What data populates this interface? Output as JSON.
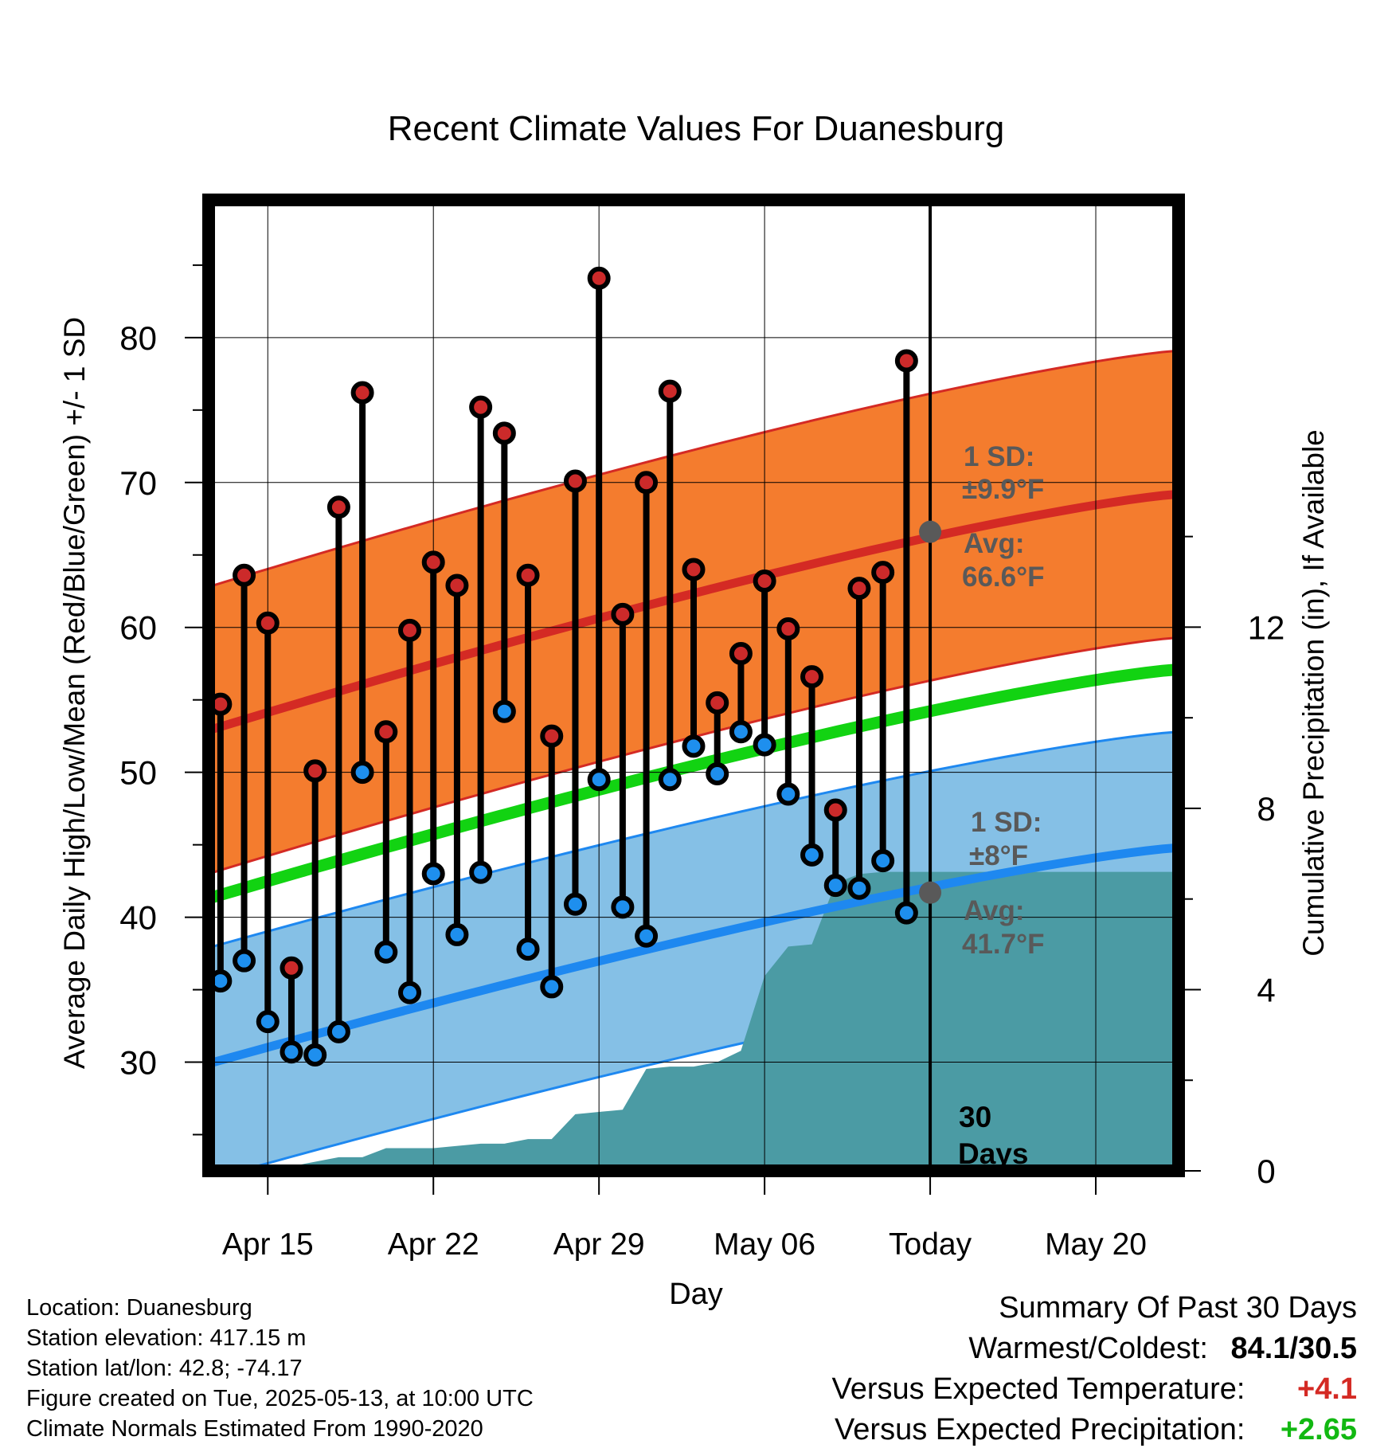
{
  "chart_data": {
    "type": "line",
    "title": "Recent Climate Values For Duanesburg",
    "xlabel": "Day",
    "ylabel": "Average Daily High/Low/Mean (Red/Blue/Green) +/- 1 SD",
    "y2label": "Cumulative Precipitation (in), If Available",
    "x_tick_labels": [
      "Apr 15",
      "Apr 22",
      "Apr 29",
      "May 06",
      "Today",
      "May 20"
    ],
    "x_range_days_from_apr15": [
      -2.5,
      38.5
    ],
    "ylim": [
      22.5,
      89.5
    ],
    "y_ticks": [
      30,
      40,
      50,
      60,
      70,
      80
    ],
    "y2lim": [
      0,
      21.43
    ],
    "y2_ticks": [
      0,
      4,
      8,
      12
    ],
    "dates": [
      "Apr 13",
      "Apr 14",
      "Apr 15",
      "Apr 16",
      "Apr 17",
      "Apr 18",
      "Apr 19",
      "Apr 20",
      "Apr 21",
      "Apr 22",
      "Apr 23",
      "Apr 24",
      "Apr 25",
      "Apr 26",
      "Apr 27",
      "Apr 28",
      "Apr 29",
      "Apr 30",
      "May 01",
      "May 02",
      "May 03",
      "May 04",
      "May 05",
      "May 06",
      "May 07",
      "May 08",
      "May 09",
      "May 10",
      "May 11",
      "May 12"
    ],
    "highs": [
      54.7,
      63.6,
      60.3,
      36.5,
      50.1,
      68.3,
      76.2,
      52.8,
      59.8,
      64.5,
      62.9,
      75.2,
      73.4,
      63.6,
      52.5,
      70.1,
      84.1,
      60.9,
      70.0,
      76.3,
      64.0,
      54.8,
      58.2,
      63.2,
      59.9,
      56.6,
      47.4,
      62.7,
      63.8,
      78.4
    ],
    "lows": [
      35.6,
      37.0,
      32.8,
      30.7,
      30.5,
      32.1,
      50.0,
      37.6,
      34.8,
      43.0,
      38.8,
      43.1,
      54.2,
      37.8,
      35.2,
      40.9,
      49.5,
      40.7,
      38.7,
      49.5,
      51.8,
      49.9,
      52.8,
      51.9,
      48.5,
      44.3,
      42.2,
      42.0,
      43.9,
      40.3
    ],
    "normal_high": {
      "start": 52.9,
      "end": 69.2,
      "today": 66.6,
      "sd": 9.9
    },
    "normal_low": {
      "start": 29.9,
      "end": 44.8,
      "today": 41.7,
      "sd": 8
    },
    "normal_mean": {
      "start": 41.3,
      "end": 57.1
    },
    "cumulative_precip_days_from_apr15": [
      -2,
      0,
      3,
      4,
      5,
      6,
      7,
      9,
      10,
      11,
      12,
      13,
      14,
      15,
      16,
      17,
      18,
      19,
      20,
      21,
      22,
      23,
      24,
      25,
      26,
      27,
      28,
      29,
      38.5
    ],
    "cumulative_precip": [
      0,
      0,
      0.3,
      0.3,
      0.5,
      0.5,
      0.5,
      0.6,
      0.6,
      0.7,
      0.7,
      1.25,
      1.3,
      1.35,
      2.25,
      2.3,
      2.3,
      2.4,
      2.65,
      4.3,
      4.95,
      5.0,
      6.35,
      6.55,
      6.6,
      6.6,
      6.6,
      6.6,
      6.6
    ],
    "colors": {
      "high_band": "#f47c2e",
      "high_line": "#d42a24",
      "low_band": "#85c0e6",
      "low_line": "#1e88f0",
      "mean_line": "#12d312",
      "precip": "#4b9ba4",
      "high_marker": "#cc2a2a",
      "low_marker": "#1e8fee",
      "annotation": "#595959"
    }
  },
  "annotations": {
    "high_sd_label": "1 SD:",
    "high_sd_value": "±9.9°F",
    "high_avg_label": "Avg:",
    "high_avg_value": "66.6°F",
    "low_sd_label": "1 SD:",
    "low_sd_value": "±8°F",
    "low_avg_label": "Avg:",
    "low_avg_value": "41.7°F",
    "window_label_1": "30",
    "window_label_2": "Days"
  },
  "station_info": {
    "location": "Location: Duanesburg",
    "elevation": "Station elevation: 417.15 m",
    "latlon": "Station lat/lon: 42.8; -74.17",
    "created": "Figure created on Tue, 2025-05-13, at 10:00 UTC",
    "normals": "Climate Normals Estimated From 1990-2020"
  },
  "summary": {
    "heading": "Summary Of Past 30 Days",
    "warm_cold_label": "Warmest/Coldest:",
    "warm_cold_value": "84.1/30.5",
    "temp_label": "Versus Expected Temperature:",
    "temp_value": "+4.1",
    "precip_label": "Versus Expected Precipitation:",
    "precip_value": "+2.65",
    "temp_color": "#d42a24",
    "precip_color": "#12b812"
  }
}
